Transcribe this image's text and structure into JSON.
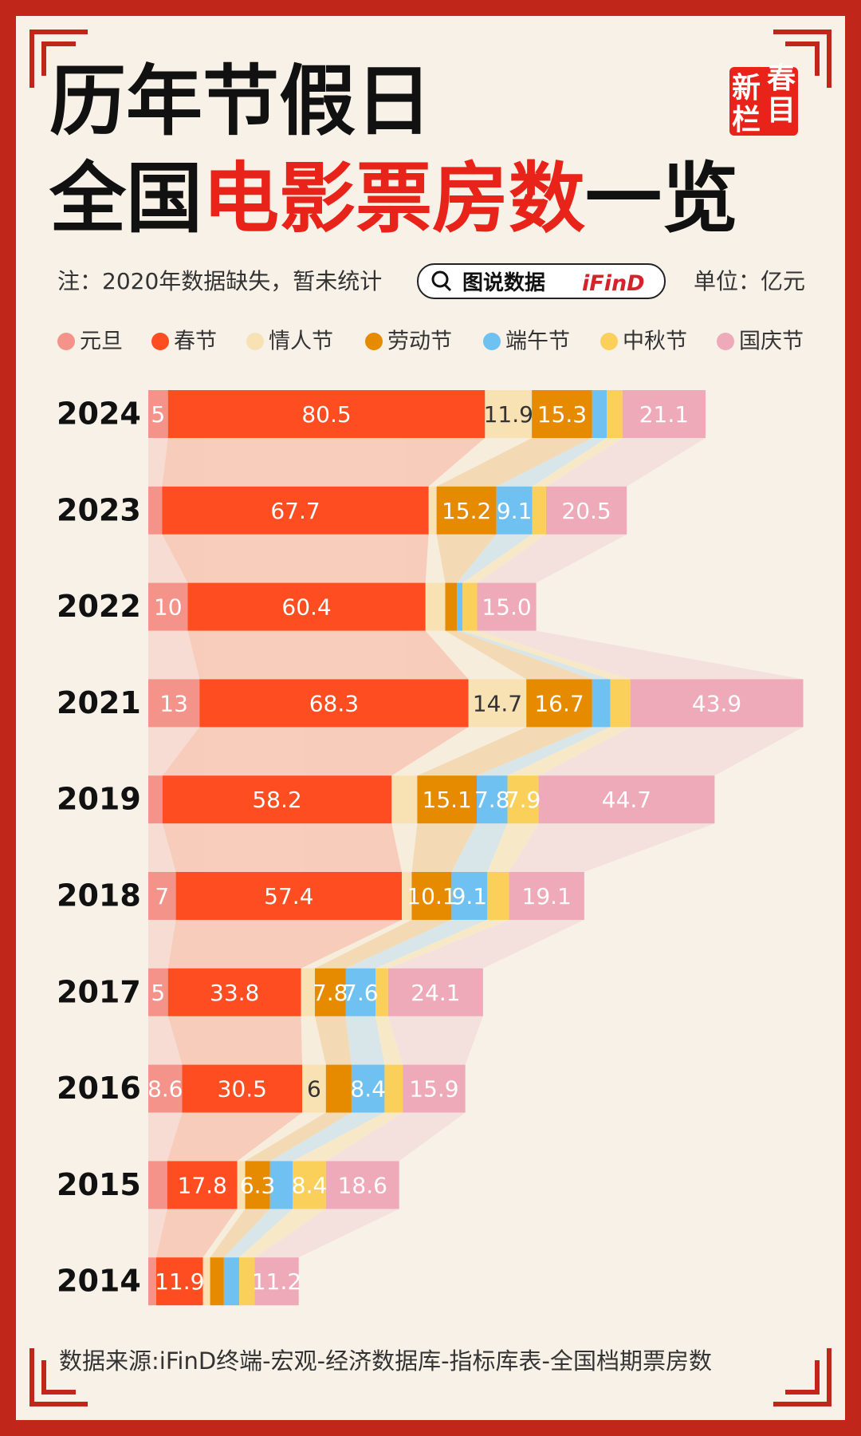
{
  "header": {
    "title_line1": "历年节假日",
    "title_line2_parts": [
      "全国",
      "电影票房数",
      "一览"
    ],
    "stamp": [
      "新",
      "春",
      "栏",
      "目"
    ],
    "note": "注：2020年数据缺失，暂未统计",
    "badge": "图说数据",
    "brand": "iFinD",
    "unit": "单位：亿元"
  },
  "chart_data": {
    "type": "stacked-bar-horizontal",
    "categories": [
      "2024",
      "2023",
      "2022",
      "2021",
      "2019",
      "2018",
      "2017",
      "2016",
      "2015",
      "2014"
    ],
    "series": [
      {
        "name": "元旦",
        "color": "#f4938a",
        "values": [
          5,
          3.5,
          10,
          13,
          3.6,
          7,
          5,
          8.6,
          4.8,
          2
        ],
        "value_labels": [
          "5",
          null,
          "10",
          "13",
          null,
          "7",
          "5",
          "8.6",
          null,
          null
        ]
      },
      {
        "name": "春节",
        "color": "#fd4d21",
        "values": [
          80.5,
          67.7,
          60.4,
          68.3,
          58.2,
          57.4,
          33.8,
          30.5,
          17.8,
          11.9
        ],
        "value_labels": [
          "80.5",
          "67.7",
          "60.4",
          "68.3",
          "58.2",
          "57.4",
          "33.8",
          "30.5",
          "17.8",
          "11.9"
        ]
      },
      {
        "name": "情人节",
        "color": "#f8e2b4",
        "values": [
          11.9,
          2,
          5,
          14.7,
          6.5,
          2.5,
          3.5,
          6,
          2,
          1.8
        ],
        "value_labels": [
          "11.9",
          null,
          null,
          "14.7",
          null,
          null,
          null,
          "6",
          null,
          null
        ]
      },
      {
        "name": "劳动节",
        "color": "#e68a00",
        "values": [
          15.3,
          15.2,
          3,
          16.7,
          15.1,
          10.1,
          7.8,
          6.5,
          6.3,
          3.5
        ],
        "value_labels": [
          "15.3",
          "15.2",
          null,
          "16.7",
          "15.1",
          "10.1",
          "7.8",
          null,
          "6.3",
          null
        ]
      },
      {
        "name": "端午节",
        "color": "#6ec1f0",
        "values": [
          3.7,
          9.1,
          1.4,
          4.6,
          7.8,
          9.1,
          7.6,
          8.4,
          5.8,
          3.9
        ],
        "value_labels": [
          null,
          "9.1",
          null,
          null,
          "7.8",
          "9.1",
          "7.6",
          "8.4",
          null,
          null
        ]
      },
      {
        "name": "中秋节",
        "color": "#fbd05a",
        "values": [
          4,
          3.5,
          3.7,
          5.1,
          7.9,
          5.5,
          3.2,
          4.6,
          8.4,
          3.9
        ],
        "value_labels": [
          null,
          null,
          null,
          null,
          "7.9",
          null,
          null,
          null,
          "8.4",
          null
        ]
      },
      {
        "name": "国庆节",
        "color": "#eeaab8",
        "values": [
          21.1,
          20.5,
          15,
          43.9,
          44.7,
          19.1,
          24.1,
          15.9,
          18.6,
          11.2
        ],
        "value_labels": [
          "21.1",
          "20.5",
          "15.0",
          "43.9",
          "44.7",
          "19.1",
          "24.1",
          "15.9",
          "18.6",
          "11.2"
        ]
      }
    ]
  },
  "footer": {
    "source": "数据来源:iFinD终端-宏观-经济数据库-指标库表-全国档期票房数"
  }
}
